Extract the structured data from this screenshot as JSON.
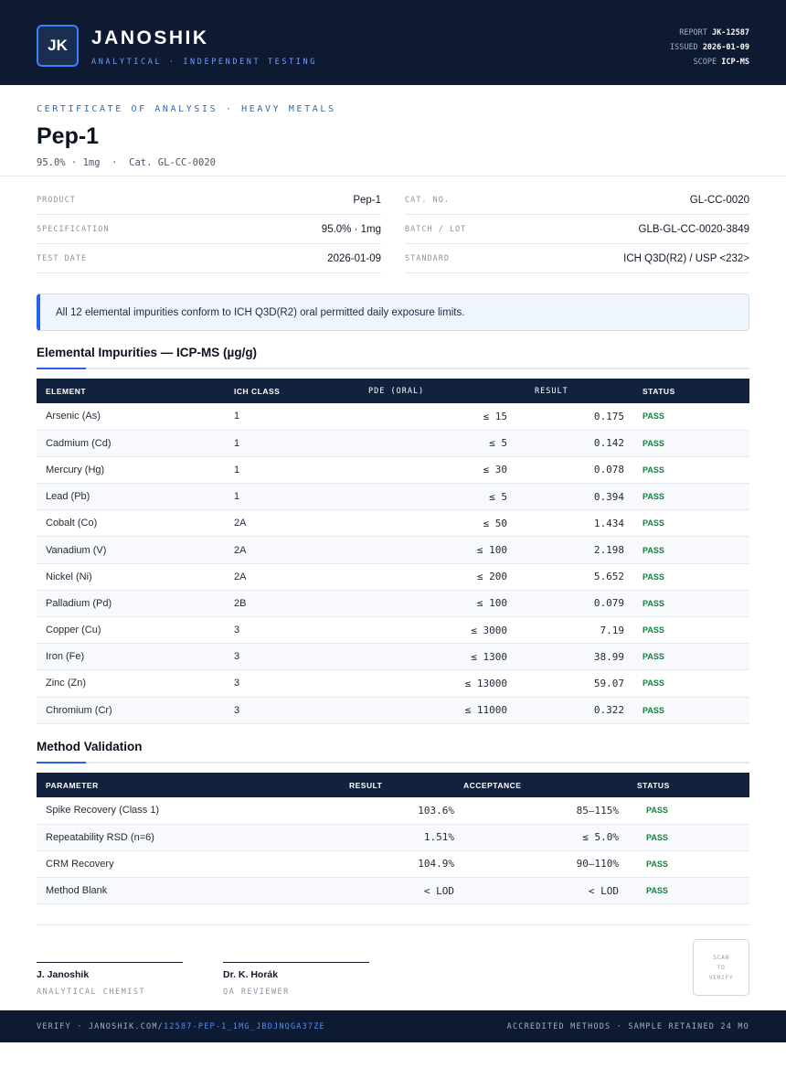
{
  "header": {
    "logo_text": "JK",
    "brand": "JANOSHIK",
    "brand_sub": "ANALYTICAL · INDEPENDENT TESTING",
    "meta": [
      {
        "label": "REPORT",
        "value": "JK-12587"
      },
      {
        "label": "ISSUED",
        "value": "2026-01-09"
      },
      {
        "label": "SCOPE",
        "value": "ICP-MS"
      }
    ]
  },
  "title_block": {
    "cert_label": "CERTIFICATE OF ANALYSIS · HEAVY METALS",
    "title": "Pep-1",
    "subtitle": "95.0% · 1mg  ·  Cat. GL-CC-0020"
  },
  "info": {
    "left": [
      {
        "label": "PRODUCT",
        "value": "Pep-1"
      },
      {
        "label": "SPECIFICATION",
        "value": "95.0% · 1mg"
      },
      {
        "label": "TEST DATE",
        "value": "2026-01-09"
      }
    ],
    "right": [
      {
        "label": "CAT. NO.",
        "value": "GL-CC-0020"
      },
      {
        "label": "BATCH / LOT",
        "value": "GLB-GL-CC-0020-3849"
      },
      {
        "label": "STANDARD",
        "value": "ICH Q3D(R2) / USP <232>"
      }
    ]
  },
  "banner": "All 12 elemental impurities conform to ICH Q3D(R2) oral permitted daily exposure limits.",
  "impurities": {
    "title": "Elemental Impurities — ICP-MS (µg/g)",
    "columns": [
      "ELEMENT",
      "ICH CLASS",
      "PDE (ORAL)",
      "RESULT",
      "STATUS"
    ],
    "rows": [
      {
        "element": "Arsenic (As)",
        "class": "1",
        "pde": "≤ 15",
        "result": "0.175",
        "status": "PASS"
      },
      {
        "element": "Cadmium (Cd)",
        "class": "1",
        "pde": "≤ 5",
        "result": "0.142",
        "status": "PASS"
      },
      {
        "element": "Mercury (Hg)",
        "class": "1",
        "pde": "≤ 30",
        "result": "0.078",
        "status": "PASS"
      },
      {
        "element": "Lead (Pb)",
        "class": "1",
        "pde": "≤ 5",
        "result": "0.394",
        "status": "PASS"
      },
      {
        "element": "Cobalt (Co)",
        "class": "2A",
        "pde": "≤ 50",
        "result": "1.434",
        "status": "PASS"
      },
      {
        "element": "Vanadium (V)",
        "class": "2A",
        "pde": "≤ 100",
        "result": "2.198",
        "status": "PASS"
      },
      {
        "element": "Nickel (Ni)",
        "class": "2A",
        "pde": "≤ 200",
        "result": "5.652",
        "status": "PASS"
      },
      {
        "element": "Palladium (Pd)",
        "class": "2B",
        "pde": "≤ 100",
        "result": "0.079",
        "status": "PASS"
      },
      {
        "element": "Copper (Cu)",
        "class": "3",
        "pde": "≤ 3000",
        "result": "7.19",
        "status": "PASS"
      },
      {
        "element": "Iron (Fe)",
        "class": "3",
        "pde": "≤ 1300",
        "result": "38.99",
        "status": "PASS"
      },
      {
        "element": "Zinc (Zn)",
        "class": "3",
        "pde": "≤ 13000",
        "result": "59.07",
        "status": "PASS"
      },
      {
        "element": "Chromium (Cr)",
        "class": "3",
        "pde": "≤ 11000",
        "result": "0.322",
        "status": "PASS"
      }
    ]
  },
  "validation": {
    "title": "Method Validation",
    "columns": [
      "PARAMETER",
      "RESULT",
      "ACCEPTANCE",
      "STATUS"
    ],
    "rows": [
      {
        "parameter": "Spike Recovery (Class 1)",
        "result": "103.6%",
        "acceptance": "85–115%",
        "status": "PASS"
      },
      {
        "parameter": "Repeatability RSD (n=6)",
        "result": "1.51%",
        "acceptance": "≤ 5.0%",
        "status": "PASS"
      },
      {
        "parameter": "CRM Recovery",
        "result": "104.9%",
        "acceptance": "90–110%",
        "status": "PASS"
      },
      {
        "parameter": "Method Blank",
        "result": "< LOD",
        "acceptance": "< LOD",
        "status": "PASS"
      }
    ]
  },
  "signatures": [
    {
      "name": "J. Janoshik",
      "role": "ANALYTICAL CHEMIST"
    },
    {
      "name": "Dr. K. Horák",
      "role": "QA REVIEWER"
    }
  ],
  "qr": {
    "line1": "SCAN",
    "line2": "TO",
    "line3": "VERIFY"
  },
  "footer": {
    "verify_prefix": "VERIFY · JANOSHIK.COM/",
    "verify_link": "12587-PEP-1_1MG_JBDJNQGA37ZE",
    "right": "ACCREDITED METHODS · SAMPLE RETAINED 24 MO"
  },
  "colors": {
    "navy": "#0e1a31",
    "accent": "#2563eb",
    "pass": "#15803d"
  }
}
